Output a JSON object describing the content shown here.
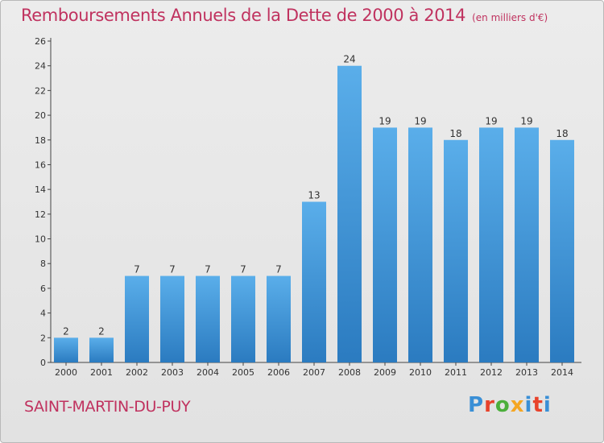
{
  "header": {
    "title": "Remboursements Annuels de la Dette de 2000 à 2014",
    "unit": "(en milliers d'€)"
  },
  "footer": {
    "town": "SAINT-MARTIN-DU-PUY",
    "brand": "Proxiti",
    "brand_colors": [
      "#3a8fd6",
      "#e8422b",
      "#4caf3c",
      "#f5a623",
      "#3a8fd6",
      "#e8422b",
      "#3a8fd6"
    ]
  },
  "chart_data": {
    "type": "bar",
    "title": "Remboursements Annuels de la Dette de 2000 à 2014",
    "subtitle": "(en milliers d'€)",
    "categories": [
      "2000",
      "2001",
      "2002",
      "2003",
      "2004",
      "2005",
      "2006",
      "2007",
      "2008",
      "2009",
      "2010",
      "2011",
      "2012",
      "2013",
      "2014"
    ],
    "values": [
      2,
      2,
      7,
      7,
      7,
      7,
      7,
      13,
      24,
      19,
      19,
      18,
      19,
      19,
      18
    ],
    "ylim": [
      0,
      26
    ],
    "yticks": [
      0,
      2,
      4,
      6,
      8,
      10,
      12,
      14,
      16,
      18,
      20,
      22,
      24,
      26
    ],
    "grid": false,
    "legend": "none",
    "bar_color_top": "#5aaeea",
    "bar_color_bottom": "#2b7bc0"
  }
}
